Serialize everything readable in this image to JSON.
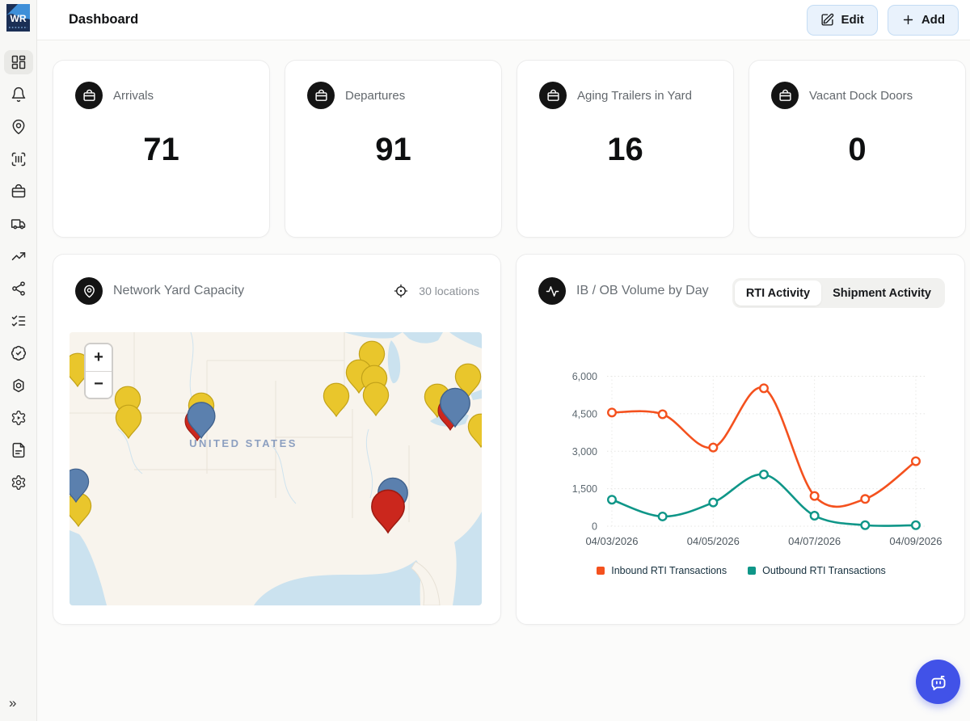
{
  "app": {
    "logo_text": "WR",
    "page_title": "Dashboard",
    "collapse_glyph": "»"
  },
  "topbar": {
    "edit_label": "Edit",
    "add_label": "Add"
  },
  "sidebar": {
    "items": [
      {
        "icon": "dashboard-icon",
        "active": true
      },
      {
        "icon": "bell-icon",
        "active": false
      },
      {
        "icon": "map-pin-icon",
        "active": false
      },
      {
        "icon": "scan-barcode-icon",
        "active": false
      },
      {
        "icon": "lunchbox-icon",
        "active": false
      },
      {
        "icon": "truck-icon",
        "active": false
      },
      {
        "icon": "trending-up-icon",
        "active": false
      },
      {
        "icon": "share-network-icon",
        "active": false
      },
      {
        "icon": "list-checks-icon",
        "active": false
      },
      {
        "icon": "badge-check-icon",
        "active": false
      },
      {
        "icon": "nut-icon",
        "active": false
      },
      {
        "icon": "gear-play-icon",
        "active": false
      },
      {
        "icon": "file-text-icon",
        "active": false
      },
      {
        "icon": "settings-icon",
        "active": false
      }
    ]
  },
  "stat_cards": [
    {
      "label": "Arrivals",
      "value": "71",
      "icon": "lunchbox-icon"
    },
    {
      "label": "Departures",
      "value": "91",
      "icon": "lunchbox-icon"
    },
    {
      "label": "Aging Trailers in Yard",
      "value": "16",
      "icon": "lunchbox-icon"
    },
    {
      "label": "Vacant Dock Doors",
      "value": "0",
      "icon": "lunchbox-icon"
    }
  ],
  "map_card": {
    "title": "Network Yard Capacity",
    "locations_label": "30 locations",
    "map_label": "UNITED STATES",
    "zoom_in": "+",
    "zoom_out": "−",
    "marker_colors": {
      "yellow": {
        "fill": "#e9c62c",
        "stroke": "#c2a219"
      },
      "blue": {
        "fill": "#5b80ae",
        "stroke": "#40618c"
      },
      "red": {
        "fill": "#cb271d",
        "stroke": "#9d1b12"
      }
    },
    "markers": [
      {
        "x": 10,
        "y": 67,
        "color": "yellow",
        "scale": 1.2
      },
      {
        "x": 72,
        "y": 108,
        "color": "yellow",
        "scale": 1.2
      },
      {
        "x": 73,
        "y": 131,
        "color": "yellow",
        "scale": 1.2
      },
      {
        "x": 374,
        "y": 52,
        "color": "yellow",
        "scale": 1.2
      },
      {
        "x": 358,
        "y": 75,
        "color": "yellow",
        "scale": 1.2
      },
      {
        "x": 377,
        "y": 82,
        "color": "yellow",
        "scale": 1.2
      },
      {
        "x": 330,
        "y": 104,
        "color": "yellow",
        "scale": 1.2
      },
      {
        "x": 379,
        "y": 103,
        "color": "yellow",
        "scale": 1.2
      },
      {
        "x": 455,
        "y": 105,
        "color": "yellow",
        "scale": 1.2
      },
      {
        "x": 493,
        "y": 80,
        "color": "yellow",
        "scale": 1.2
      },
      {
        "x": 509,
        "y": 142,
        "color": "yellow",
        "scale": 1.2
      },
      {
        "x": 11,
        "y": 240,
        "color": "yellow",
        "scale": 1.2
      },
      {
        "x": 163,
        "y": 116,
        "color": "yellow",
        "scale": 1.2
      },
      {
        "x": 8,
        "y": 210,
        "color": "blue",
        "scale": 1.2
      },
      {
        "x": 158,
        "y": 134,
        "color": "red",
        "scale": 1.15
      },
      {
        "x": 163,
        "y": 131,
        "color": "blue",
        "scale": 1.3
      },
      {
        "x": 471,
        "y": 121,
        "color": "red",
        "scale": 1.15
      },
      {
        "x": 477,
        "y": 117,
        "color": "blue",
        "scale": 1.4
      },
      {
        "x": 400,
        "y": 228,
        "color": "blue",
        "scale": 1.4
      },
      {
        "x": 394,
        "y": 248,
        "color": "red",
        "scale": 1.55
      }
    ]
  },
  "chart_card": {
    "title": "IB / OB Volume by Day",
    "tabs": [
      {
        "label": "RTI Activity",
        "active": true
      },
      {
        "label": "Shipment Activity",
        "active": false
      }
    ]
  },
  "chart_data": {
    "type": "line",
    "x": [
      "04/03/2026",
      "04/04/2026",
      "04/05/2026",
      "04/06/2026",
      "04/07/2026",
      "04/08/2026",
      "04/09/2026"
    ],
    "x_label_indices": [
      0,
      2,
      4,
      6
    ],
    "series": [
      {
        "name": "Inbound RTI Transactions",
        "color": "#f4511e",
        "values": [
          4550,
          4480,
          3150,
          5520,
          1210,
          1090,
          2600
        ]
      },
      {
        "name": "Outbound RTI Transactions",
        "color": "#0f9688",
        "values": [
          1060,
          390,
          950,
          2070,
          420,
          40,
          40
        ]
      }
    ],
    "ylim": [
      0,
      6000
    ],
    "y_ticks": [
      0,
      1500,
      3000,
      4500,
      6000
    ],
    "grid": true,
    "legend_position": "bottom"
  },
  "fab": {
    "icon": "chat-bot-icon"
  }
}
